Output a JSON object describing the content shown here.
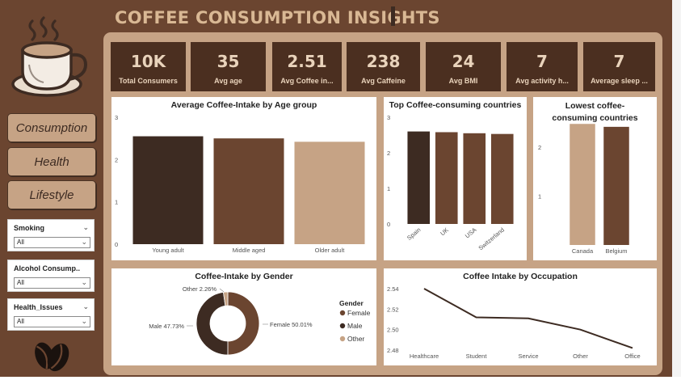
{
  "header": {
    "title": "COFFEE CONSUMPTION INSIGHTS"
  },
  "logo": {
    "icon": "coffee-cup-icon",
    "bottom_icon": "coffee-beans-icon"
  },
  "nav": [
    {
      "label": "Consumption"
    },
    {
      "label": "Health"
    },
    {
      "label": "Lifestyle"
    }
  ],
  "filters": [
    {
      "title": "Smoking",
      "value": "All"
    },
    {
      "title": "Alcohol Consump...",
      "value": "All"
    },
    {
      "title": "Health_Issues",
      "value": "All"
    }
  ],
  "kpis": [
    {
      "value": "10K",
      "label": "Total Consumers"
    },
    {
      "value": "35",
      "label": "Avg age"
    },
    {
      "value": "2.51",
      "label": "Avg Coffee in..."
    },
    {
      "value": "238",
      "label": "Avg Caffeine"
    },
    {
      "value": "24",
      "label": "Avg BMI"
    },
    {
      "value": "7",
      "label": "Avg activity h..."
    },
    {
      "value": "7",
      "label": "Average sleep ..."
    }
  ],
  "colors": {
    "dark": "#3d2b22",
    "medium": "#6b4530",
    "light": "#c6a385",
    "panel": "#c6a385",
    "kpi_bg": "#4b2f20"
  },
  "chart_data": [
    {
      "id": "age",
      "type": "bar",
      "title": "Average Coffee-Intake by Age group",
      "categories": [
        "Young adult",
        "Middle aged",
        "Older adult"
      ],
      "values": [
        2.55,
        2.5,
        2.42
      ],
      "yticks": [
        "0",
        "1",
        "2",
        "3"
      ],
      "ylim": [
        0,
        3
      ],
      "colors": [
        "#3d2b22",
        "#6b4530",
        "#c6a385"
      ]
    },
    {
      "id": "top",
      "type": "bar",
      "title": "Top Coffee-consuming countries",
      "categories": [
        "Spain",
        "UK",
        "USA",
        "Switzerland"
      ],
      "values": [
        2.6,
        2.58,
        2.55,
        2.53
      ],
      "yticks": [
        "0",
        "1",
        "2",
        "3"
      ],
      "ylim": [
        0,
        3
      ],
      "colors": [
        "#3d2b22",
        "#6b4530",
        "#6b4530",
        "#6b4530"
      ]
    },
    {
      "id": "low",
      "type": "bar",
      "title": "Lowest coffee-consuming countries",
      "categories": [
        "Canada",
        "Belgium"
      ],
      "values": [
        2.48,
        2.42
      ],
      "yticks": [
        "1",
        "2"
      ],
      "ylim": [
        0,
        2.6
      ],
      "colors": [
        "#c6a385",
        "#6b4530"
      ]
    },
    {
      "id": "gender",
      "type": "pie",
      "title": "Coffee-Intake by Gender",
      "legend_title": "Gender",
      "slices": [
        {
          "name": "Female",
          "value": 50.01,
          "label": "Female 50.01%",
          "color": "#6b4530"
        },
        {
          "name": "Male",
          "value": 47.73,
          "label": "Male 47.73%",
          "color": "#3d2b22"
        },
        {
          "name": "Other",
          "value": 2.26,
          "label": "Other 2.26%",
          "color": "#c6a385"
        }
      ]
    },
    {
      "id": "occupation",
      "type": "line",
      "title": "Coffee Intake by Occupation",
      "categories": [
        "Healthcare",
        "Student",
        "Service",
        "Other",
        "Office"
      ],
      "values": [
        2.54,
        2.512,
        2.511,
        2.5,
        2.482
      ],
      "yticks": [
        "2.54",
        "2.52",
        "2.50",
        "2.48"
      ],
      "ylim": [
        2.48,
        2.54
      ],
      "color": "#3d2b22"
    }
  ]
}
